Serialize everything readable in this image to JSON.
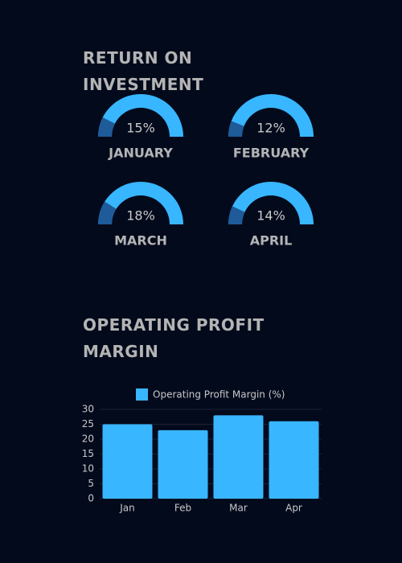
{
  "chart_data": [
    {
      "type": "gauge",
      "title": "RETURN ON INVESTMENT",
      "categories": [
        "JANUARY",
        "FEBRUARY",
        "MARCH",
        "APRIL"
      ],
      "values": [
        15,
        12,
        18,
        14
      ],
      "value_labels": [
        "15%",
        "12%",
        "18%",
        "14%"
      ],
      "ylim": [
        0,
        100
      ],
      "color": "#1f5a99",
      "track_color": "#38b6ff"
    },
    {
      "type": "bar",
      "title": "OPERATING PROFIT MARGIN",
      "categories": [
        "Jan",
        "Feb",
        "Mar",
        "Apr"
      ],
      "series": [
        {
          "name": "Operating Profit Margin (%)",
          "color": "#38b6ff",
          "values": [
            25,
            23,
            28,
            26
          ]
        }
      ],
      "ylim": [
        0,
        30
      ],
      "yticks": [
        0,
        5,
        10,
        15,
        20,
        25,
        30
      ],
      "grid": true
    }
  ]
}
